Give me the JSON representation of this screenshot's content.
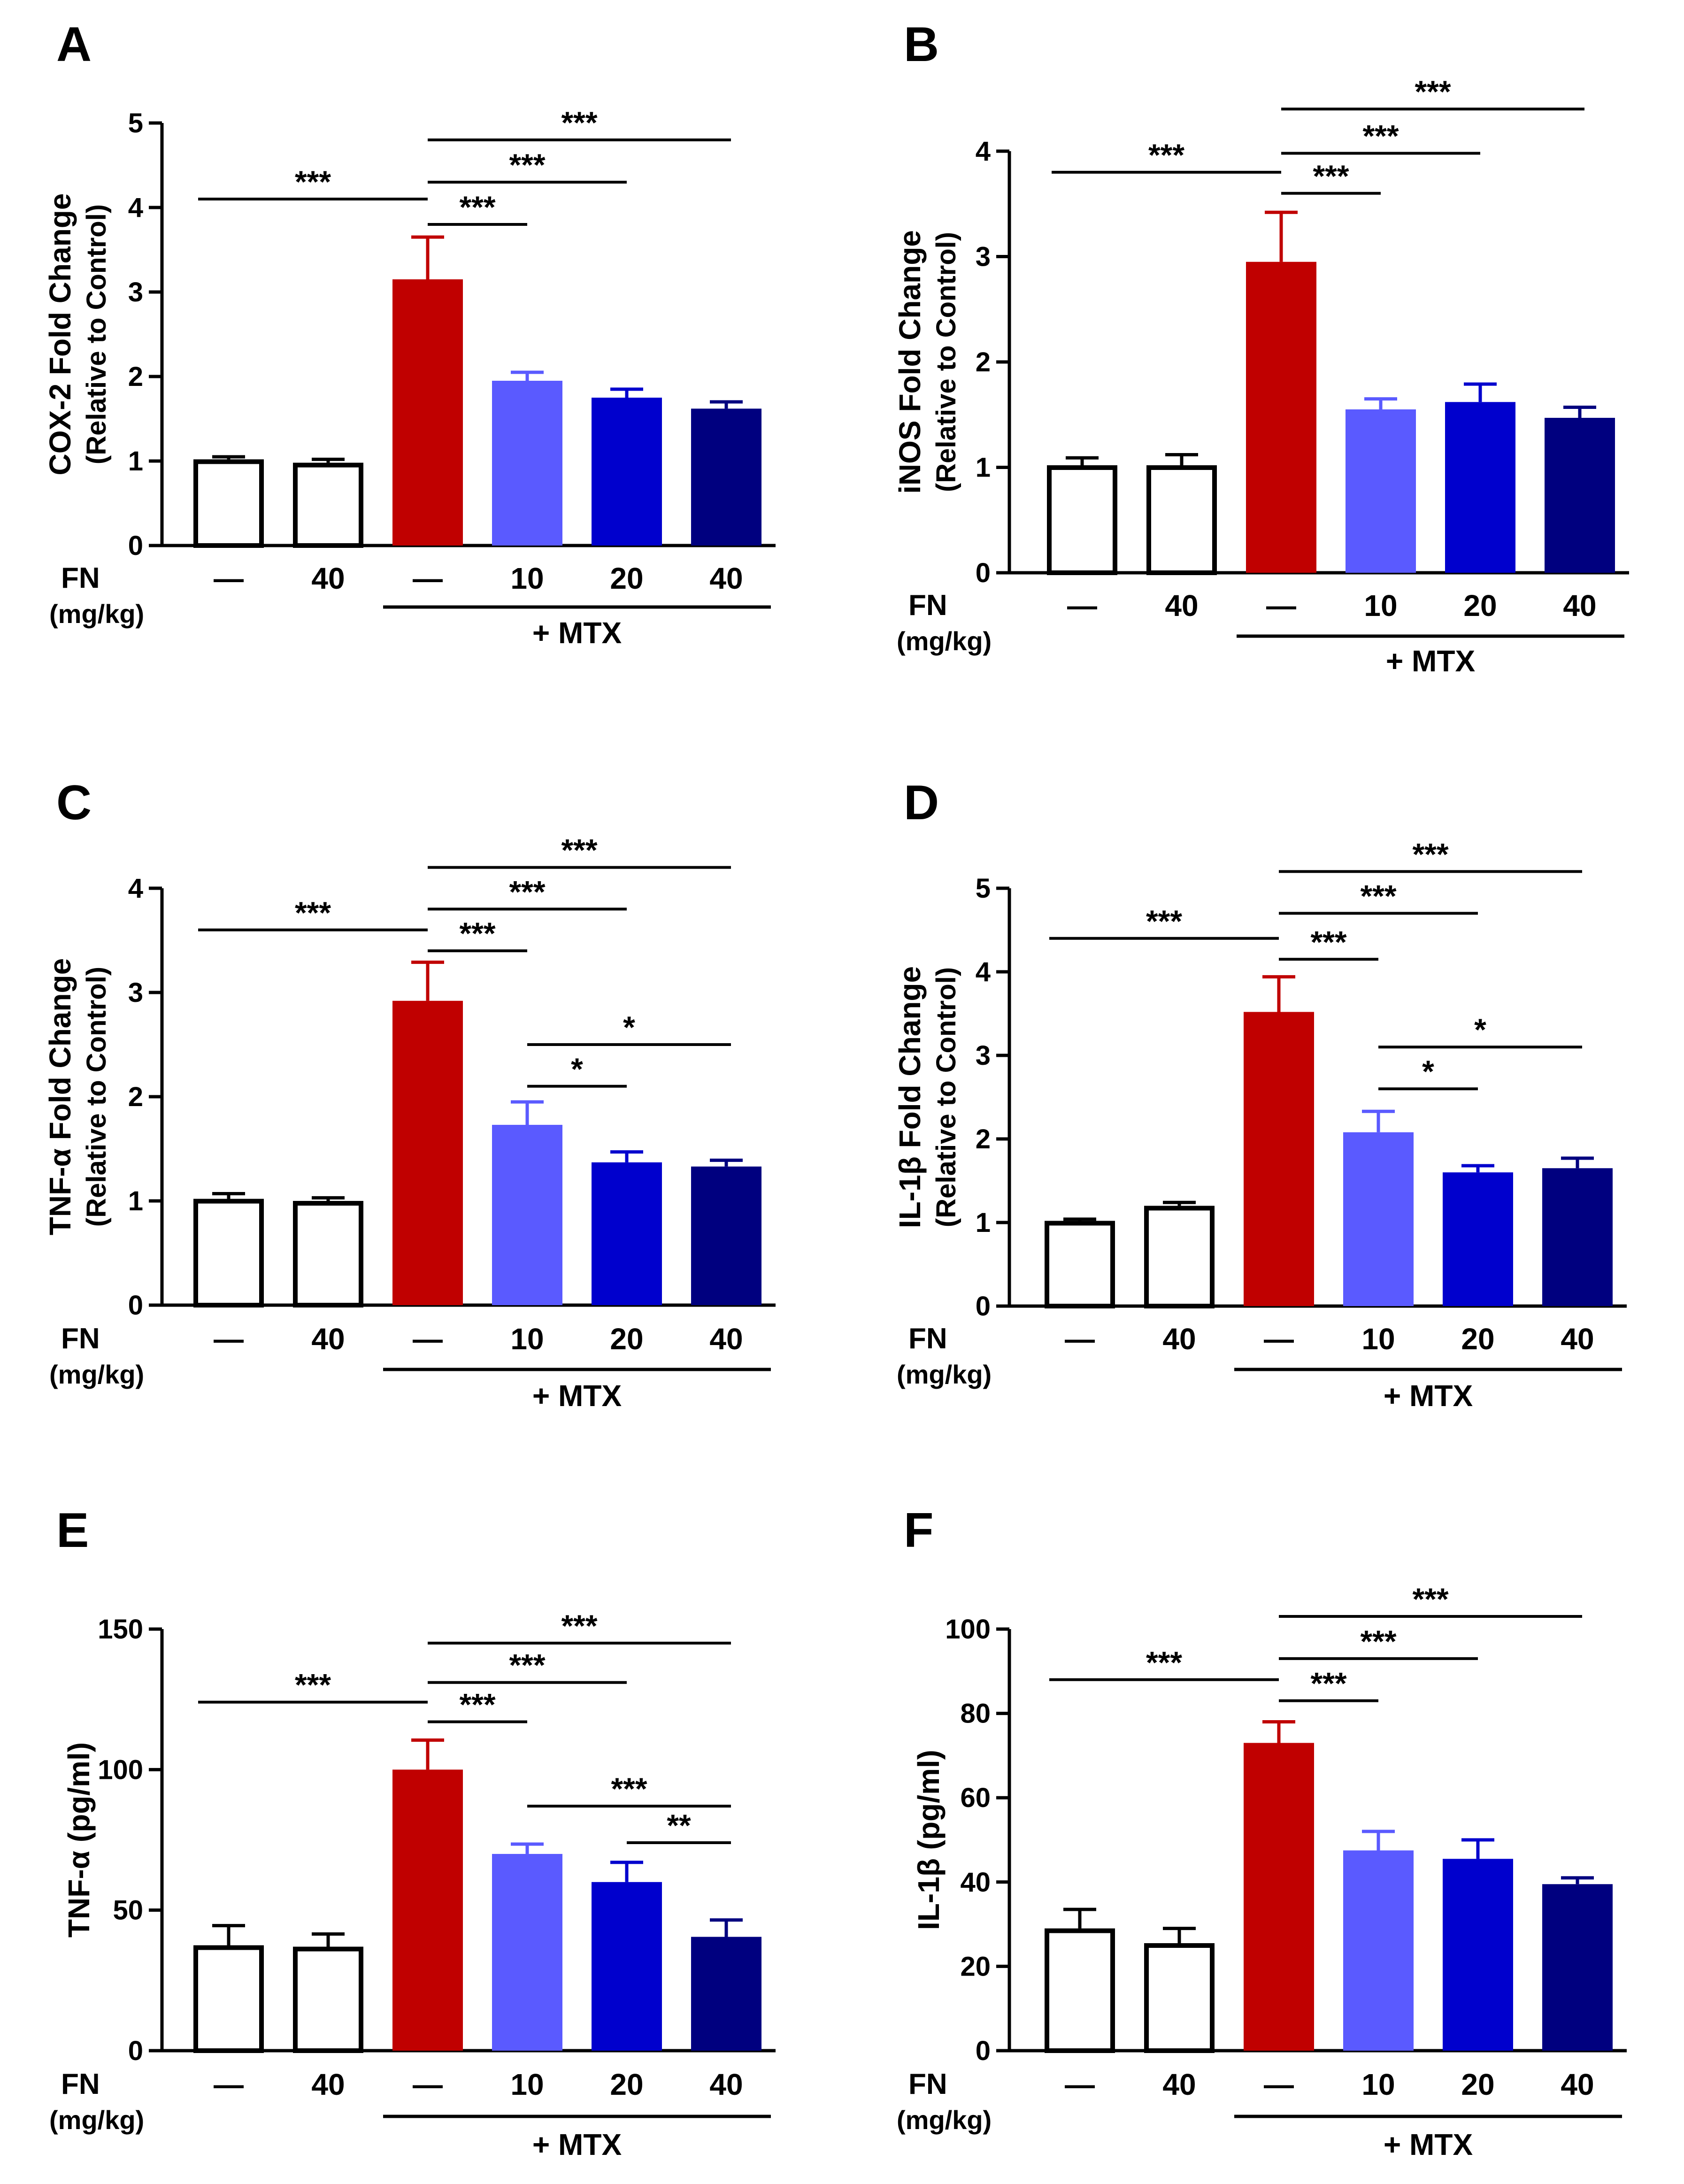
{
  "labels": {
    "group_label": "FN",
    "unit_label": "(mg/kg)",
    "mtx_label": "+ MTX",
    "dose_labels": [
      "—",
      "40",
      "—",
      "10",
      "20",
      "40"
    ]
  },
  "colors": {
    "bar_fills": [
      "#ffffff",
      "#ffffff",
      "#c00000",
      "#5a5aff",
      "#0000cd",
      "#00007f"
    ],
    "bar_strokes": [
      "#000000",
      "#000000",
      "#c00000",
      "#5a5aff",
      "#0000cd",
      "#00007f"
    ],
    "axis": "#000000"
  },
  "chart_data": [
    {
      "panel": "A",
      "type": "bar",
      "ylabel": "COX-2 Fold Change",
      "ylabel_sub": "(Relative to Control)",
      "ylim": [
        0,
        5
      ],
      "yticks": [
        0,
        1,
        2,
        3,
        4,
        5
      ],
      "values": [
        1.02,
        0.98,
        3.15,
        1.95,
        1.75,
        1.62
      ],
      "errors": [
        0.03,
        0.04,
        0.5,
        0.1,
        0.1,
        0.08
      ],
      "significance": [
        {
          "from": 0,
          "to": 2,
          "label": "***",
          "y": 4.1
        },
        {
          "from": 2,
          "to": 3,
          "label": "***",
          "y": 3.8
        },
        {
          "from": 2,
          "to": 4,
          "label": "***",
          "y": 4.3
        },
        {
          "from": 2,
          "to": 5,
          "label": "***",
          "y": 4.8
        }
      ]
    },
    {
      "panel": "B",
      "type": "bar",
      "ylabel": "iNOS Fold Change",
      "ylabel_sub": "(Relative to Control)",
      "ylim": [
        0,
        4
      ],
      "yticks": [
        0,
        1,
        2,
        3,
        4
      ],
      "values": [
        1.02,
        1.02,
        2.95,
        1.55,
        1.62,
        1.47
      ],
      "errors": [
        0.07,
        0.1,
        0.47,
        0.1,
        0.17,
        0.1
      ],
      "significance": [
        {
          "from": 0,
          "to": 2,
          "label": "***",
          "y": 3.8
        },
        {
          "from": 2,
          "to": 3,
          "label": "***",
          "y": 3.6
        },
        {
          "from": 2,
          "to": 4,
          "label": "***",
          "y": 3.98
        },
        {
          "from": 2,
          "to": 5,
          "label": "***",
          "y": 4.4
        }
      ]
    },
    {
      "panel": "C",
      "type": "bar",
      "ylabel": "TNF-α Fold Change",
      "ylabel_sub": "(Relative to Control)",
      "ylim": [
        0,
        4
      ],
      "yticks": [
        0,
        1,
        2,
        3,
        4
      ],
      "values": [
        1.02,
        1.0,
        2.92,
        1.73,
        1.37,
        1.33
      ],
      "errors": [
        0.05,
        0.03,
        0.37,
        0.22,
        0.1,
        0.06
      ],
      "significance": [
        {
          "from": 0,
          "to": 2,
          "label": "***",
          "y": 3.6
        },
        {
          "from": 2,
          "to": 3,
          "label": "***",
          "y": 3.4
        },
        {
          "from": 2,
          "to": 4,
          "label": "***",
          "y": 3.8
        },
        {
          "from": 2,
          "to": 5,
          "label": "***",
          "y": 4.2
        },
        {
          "from": 3,
          "to": 4,
          "label": "*",
          "y": 2.1
        },
        {
          "from": 3,
          "to": 5,
          "label": "*",
          "y": 2.5
        }
      ]
    },
    {
      "panel": "D",
      "type": "bar",
      "ylabel": "IL-1β Fold Change",
      "ylabel_sub": "(Relative to Control)",
      "ylim": [
        0,
        5
      ],
      "yticks": [
        0,
        1,
        2,
        3,
        4,
        5
      ],
      "values": [
        1.02,
        1.2,
        3.52,
        2.08,
        1.6,
        1.65
      ],
      "errors": [
        0.02,
        0.04,
        0.42,
        0.25,
        0.08,
        0.12
      ],
      "significance": [
        {
          "from": 0,
          "to": 2,
          "label": "***",
          "y": 4.4
        },
        {
          "from": 2,
          "to": 3,
          "label": "***",
          "y": 4.15
        },
        {
          "from": 2,
          "to": 4,
          "label": "***",
          "y": 4.7
        },
        {
          "from": 2,
          "to": 5,
          "label": "***",
          "y": 5.2
        },
        {
          "from": 3,
          "to": 4,
          "label": "*",
          "y": 2.6
        },
        {
          "from": 3,
          "to": 5,
          "label": "*",
          "y": 3.1
        }
      ]
    },
    {
      "panel": "E",
      "type": "bar",
      "ylabel": "TNF-α (pg/ml)",
      "ylabel_sub": "",
      "ylim": [
        0,
        150
      ],
      "yticks": [
        0,
        50,
        100,
        150
      ],
      "values": [
        37.5,
        37.0,
        100.0,
        70.0,
        60.0,
        40.5
      ],
      "errors": [
        7.0,
        4.5,
        10.5,
        3.5,
        7.0,
        6.0
      ],
      "significance": [
        {
          "from": 0,
          "to": 2,
          "label": "***",
          "y": 124
        },
        {
          "from": 2,
          "to": 3,
          "label": "***",
          "y": 117
        },
        {
          "from": 2,
          "to": 4,
          "label": "***",
          "y": 131
        },
        {
          "from": 2,
          "to": 5,
          "label": "***",
          "y": 145
        },
        {
          "from": 3,
          "to": 5,
          "label": "***",
          "y": 87
        },
        {
          "from": 4,
          "to": 5,
          "label": "**",
          "y": 74
        }
      ]
    },
    {
      "panel": "F",
      "type": "bar",
      "ylabel": "IL-1β (pg/ml)",
      "ylabel_sub": "",
      "ylim": [
        0,
        100
      ],
      "yticks": [
        0,
        20,
        40,
        60,
        80,
        100
      ],
      "values": [
        29.0,
        25.5,
        73.0,
        47.5,
        45.5,
        39.5
      ],
      "errors": [
        4.5,
        3.5,
        5.0,
        4.5,
        4.5,
        1.5
      ],
      "significance": [
        {
          "from": 0,
          "to": 2,
          "label": "***",
          "y": 88
        },
        {
          "from": 2,
          "to": 3,
          "label": "***",
          "y": 83
        },
        {
          "from": 2,
          "to": 4,
          "label": "***",
          "y": 93
        },
        {
          "from": 2,
          "to": 5,
          "label": "***",
          "y": 103
        }
      ]
    }
  ]
}
